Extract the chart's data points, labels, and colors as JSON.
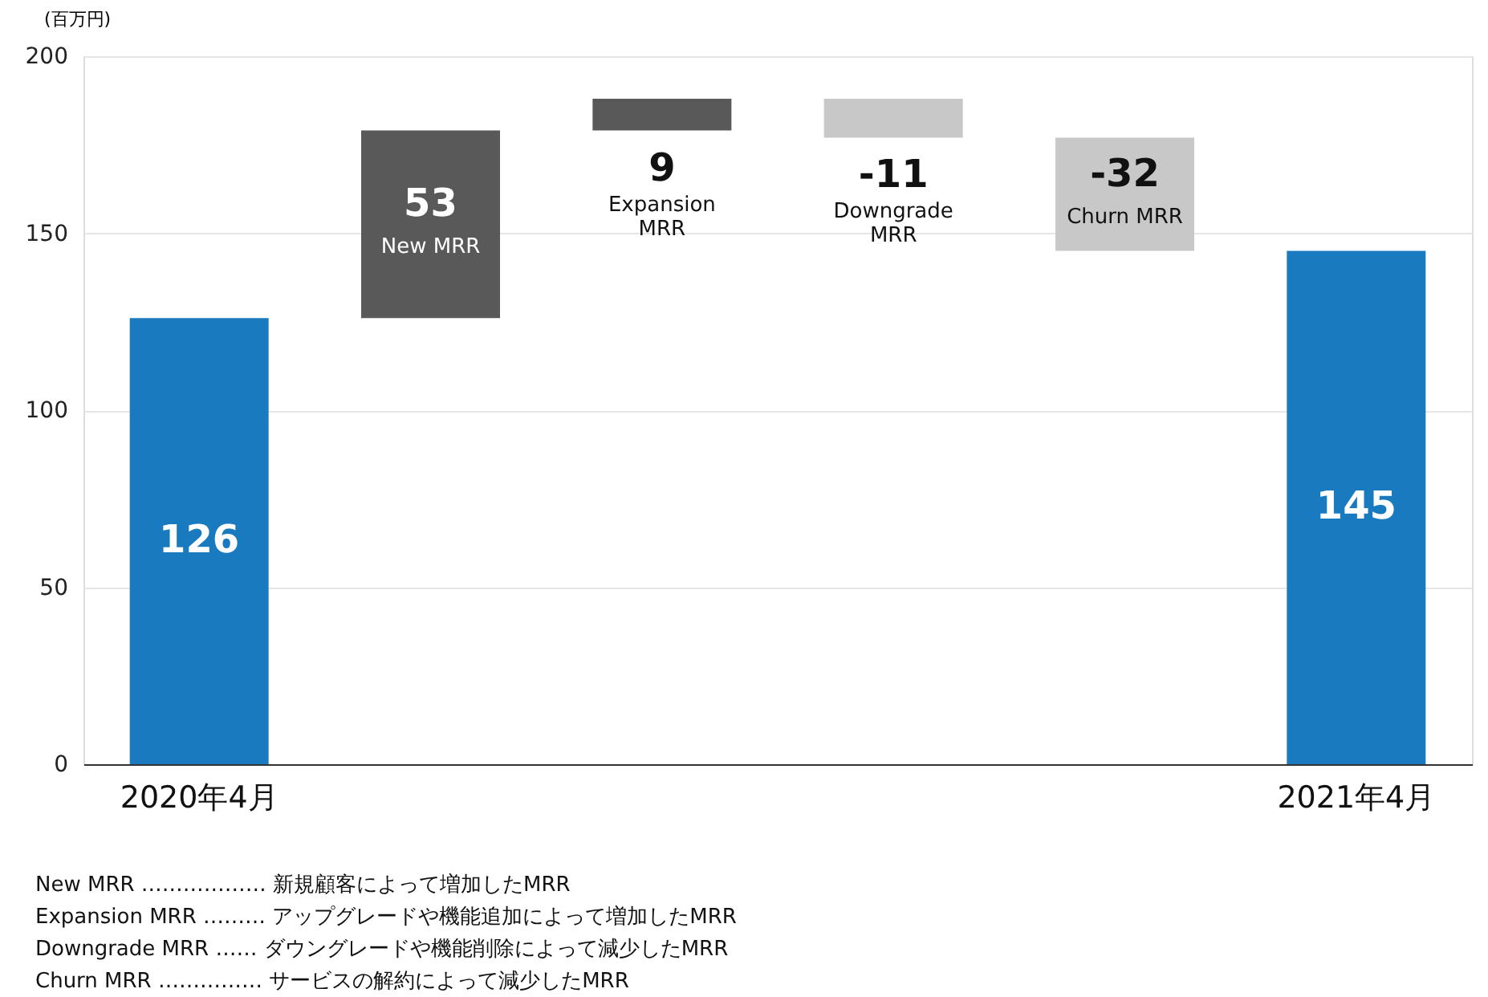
{
  "chart_data": {
    "type": "bar",
    "ylabel": "(百万円)",
    "categories": [
      "2020年4月",
      "New MRR",
      "Expansion MRR",
      "Downgrade MRR",
      "Churn MRR",
      "2021年4月"
    ],
    "values": [
      126,
      53,
      9,
      -11,
      -32,
      145
    ],
    "base": [
      0,
      126,
      179,
      188,
      177,
      0
    ],
    "colors": [
      "#1a7abf",
      "#595959",
      "#595959",
      "#c8c8c8",
      "#c8c8c8",
      "#1a7abf"
    ],
    "data_labels": true,
    "ylim": [
      0,
      200
    ],
    "yticks": [
      0,
      50,
      100,
      150,
      200
    ],
    "grid": "y",
    "annotations": [
      "New MRR ……………… 新規顧客によって増加したMRR",
      "Expansion MRR ……… アップグレードや機能追加によって増加したMRR",
      "Downgrade MRR …… ダウングレードや機能削除によって減少したMRR",
      "Churn MRR …………… サービスの解約によって減少したMRR"
    ]
  }
}
